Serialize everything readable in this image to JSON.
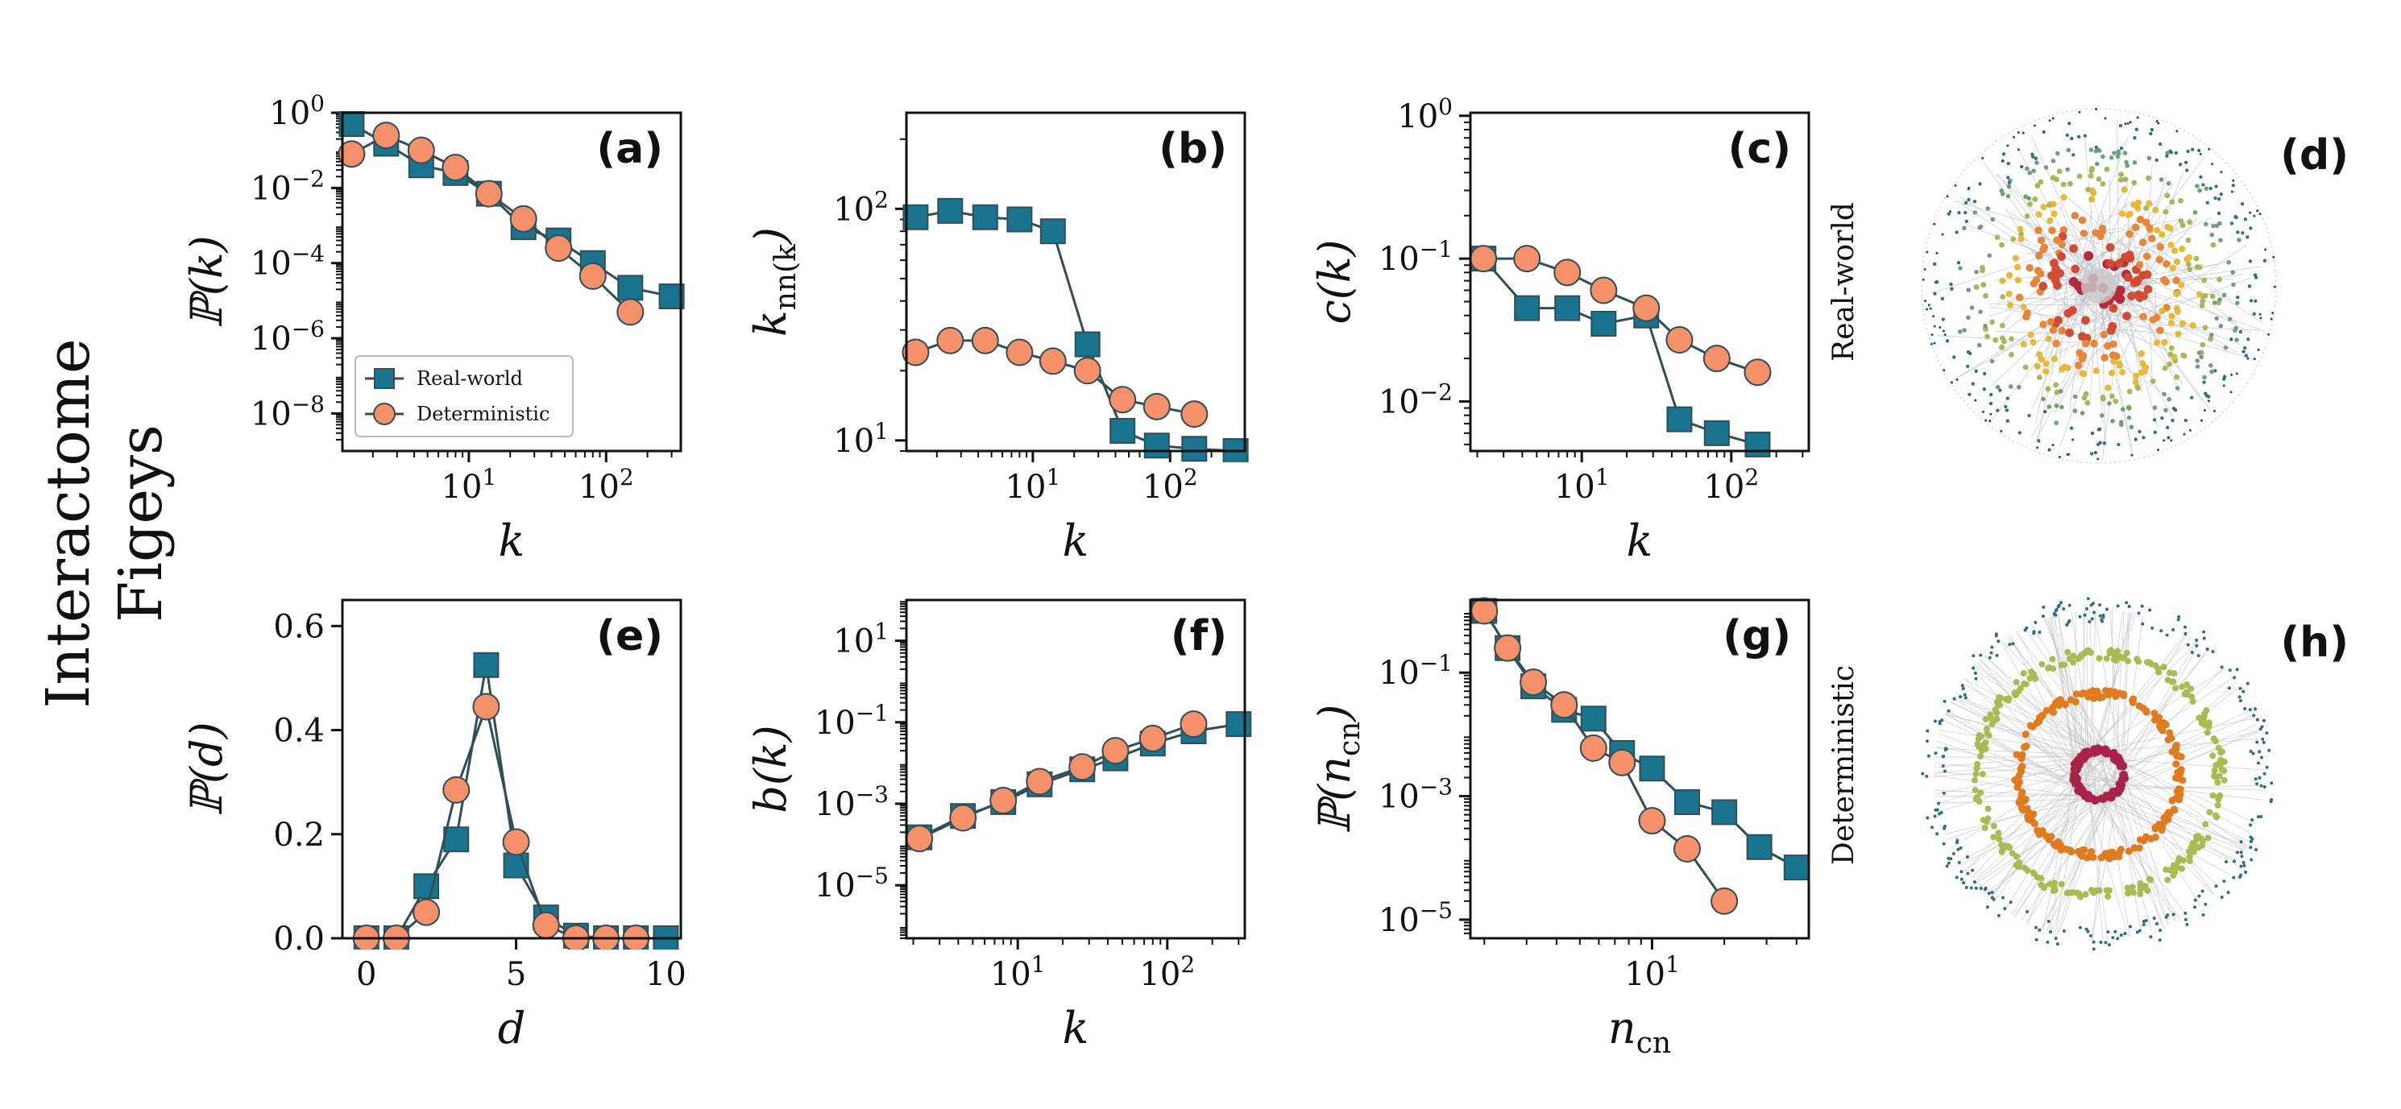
{
  "figure": {
    "row_label_line1": "Interactome",
    "row_label_line2": "Figeys",
    "side_label_top": "Real-world",
    "side_label_bottom": "Deterministic",
    "network_d_label": "(d)",
    "network_h_label": "(h)"
  },
  "colors": {
    "real": "#1a7490",
    "det": "#f4906a",
    "edge": "#2f4f55"
  },
  "chart_data": [
    {
      "id": "a",
      "label": "(a)",
      "type": "line",
      "xscale": "log",
      "yscale": "log",
      "xlim": [
        1.2,
        350
      ],
      "ylim": [
        1e-09,
        1
      ],
      "xticks": [
        10,
        100
      ],
      "xticklabels": [
        "10¹",
        "10²"
      ],
      "yticks": [
        1,
        0.01,
        0.0001,
        1e-06,
        1e-08
      ],
      "yticklabels": [
        "10⁰",
        "10⁻²",
        "10⁻⁴",
        "10⁻⁶",
        "10⁻⁸"
      ],
      "xlabel": "k",
      "ylabel": "ℙ(k)",
      "legend": {
        "position": "lower-left",
        "entries": [
          "Real-world",
          "Deterministic"
        ]
      },
      "series": [
        {
          "name": "Real-world",
          "marker": "square",
          "x": [
            1.4,
            2.5,
            4.5,
            8,
            14,
            25,
            45,
            80,
            150,
            300
          ],
          "y": [
            0.5,
            0.15,
            0.04,
            0.025,
            0.007,
            0.0009,
            0.0004,
            0.0001,
            2.2e-05,
            1.3e-05
          ]
        },
        {
          "name": "Deterministic",
          "marker": "circle",
          "x": [
            1.4,
            2.5,
            4.5,
            8,
            14,
            25,
            45,
            80,
            150
          ],
          "y": [
            0.08,
            0.25,
            0.1,
            0.035,
            0.007,
            0.0015,
            0.00025,
            4.5e-05,
            5e-06
          ]
        }
      ]
    },
    {
      "id": "b",
      "label": "(b)",
      "type": "line",
      "xscale": "log",
      "yscale": "log",
      "xlim": [
        1.2,
        350
      ],
      "ylim": [
        9,
        260
      ],
      "xticks": [
        10,
        100
      ],
      "xticklabels": [
        "10¹",
        "10²"
      ],
      "yticks": [
        10,
        100
      ],
      "yticklabels": [
        "10¹",
        "10²"
      ],
      "xlabel": "k",
      "ylabel": "k_nn(k)",
      "series": [
        {
          "name": "Real-world",
          "marker": "square",
          "x": [
            1.4,
            2.5,
            4.5,
            8,
            14,
            25,
            45,
            80,
            150,
            300
          ],
          "y": [
            92,
            98,
            92,
            90,
            80,
            26,
            11,
            9.5,
            9.2,
            9
          ]
        },
        {
          "name": "Deterministic",
          "marker": "circle",
          "x": [
            1.4,
            2.5,
            4.5,
            8,
            14,
            25,
            45,
            80,
            150
          ],
          "y": [
            24,
            27,
            27,
            24,
            22,
            20,
            15,
            14,
            13
          ]
        }
      ]
    },
    {
      "id": "c",
      "label": "(c)",
      "type": "line",
      "xscale": "log",
      "yscale": "log",
      "xlim": [
        1.8,
        330
      ],
      "ylim": [
        0.0045,
        1.05
      ],
      "xticks": [
        10,
        100
      ],
      "xticklabels": [
        "10¹",
        "10²"
      ],
      "yticks": [
        1,
        0.1,
        0.01
      ],
      "yticklabels": [
        "10⁰",
        "10⁻¹",
        "10⁻²"
      ],
      "xlabel": "k",
      "ylabel": "c(k)",
      "series": [
        {
          "name": "Real-world",
          "marker": "square",
          "x": [
            2.2,
            4.3,
            8,
            14,
            27,
            45,
            80,
            150
          ],
          "y": [
            0.1,
            0.045,
            0.045,
            0.035,
            0.04,
            0.0075,
            0.006,
            0.005
          ]
        },
        {
          "name": "Deterministic",
          "marker": "circle",
          "x": [
            2.2,
            4.3,
            8,
            14,
            27,
            45,
            80,
            150
          ],
          "y": [
            0.1,
            0.1,
            0.08,
            0.06,
            0.045,
            0.027,
            0.02,
            0.016
          ]
        }
      ]
    },
    {
      "id": "e",
      "label": "(e)",
      "type": "line",
      "xscale": "linear",
      "yscale": "linear",
      "xlim": [
        -0.8,
        10.5
      ],
      "ylim": [
        0,
        0.65
      ],
      "xticks": [
        0,
        5,
        10
      ],
      "xticklabels": [
        "0",
        "5",
        "10"
      ],
      "yticks": [
        0,
        0.2,
        0.4,
        0.6
      ],
      "yticklabels": [
        "0.0",
        "0.2",
        "0.4",
        "0.6"
      ],
      "xlabel": "d",
      "ylabel": "ℙ(d)",
      "series": [
        {
          "name": "Real-world",
          "marker": "square",
          "x": [
            0,
            1,
            2,
            3,
            4,
            5,
            6,
            7,
            8,
            9,
            10
          ],
          "y": [
            0,
            0,
            0.1,
            0.19,
            0.525,
            0.14,
            0.04,
            0.005,
            0,
            0,
            0
          ]
        },
        {
          "name": "Deterministic",
          "marker": "circle",
          "x": [
            0,
            1,
            2,
            3,
            4,
            5,
            6,
            7,
            8,
            9
          ],
          "y": [
            0,
            0,
            0.05,
            0.285,
            0.445,
            0.185,
            0.025,
            0,
            0,
            0
          ]
        }
      ]
    },
    {
      "id": "f",
      "label": "(f)",
      "type": "line",
      "xscale": "log",
      "yscale": "log",
      "xlim": [
        1.8,
        330
      ],
      "ylim": [
        5e-07,
        100
      ],
      "xticks": [
        10,
        100
      ],
      "xticklabels": [
        "10¹",
        "10²"
      ],
      "yticks": [
        10,
        0.1,
        0.001,
        1e-05
      ],
      "yticklabels": [
        "10¹",
        "10⁻¹",
        "10⁻³",
        "10⁻⁵"
      ],
      "xlabel": "k",
      "ylabel": "b(k)",
      "series": [
        {
          "name": "Real-world",
          "marker": "square",
          "x": [
            2.2,
            4.3,
            8,
            14,
            27,
            45,
            80,
            150,
            300
          ],
          "y": [
            0.00015,
            0.0005,
            0.0011,
            0.003,
            0.007,
            0.013,
            0.03,
            0.06,
            0.09
          ]
        },
        {
          "name": "Deterministic",
          "marker": "circle",
          "x": [
            2.2,
            4.3,
            8,
            14,
            27,
            45,
            80,
            150
          ],
          "y": [
            0.00014,
            0.00045,
            0.0012,
            0.0035,
            0.008,
            0.02,
            0.04,
            0.09
          ]
        }
      ]
    },
    {
      "id": "g",
      "label": "(g)",
      "type": "line",
      "xscale": "log",
      "yscale": "log",
      "xlim": [
        1.75,
        45
      ],
      "ylim": [
        5e-06,
        1.5
      ],
      "xticks": [
        10
      ],
      "xticklabels": [
        "10¹"
      ],
      "yticks": [
        0.1,
        0.001,
        1e-05
      ],
      "yticklabels": [
        "10⁻¹",
        "10⁻³",
        "10⁻⁵"
      ],
      "xlabel": "n_cn",
      "ylabel": "ℙ(n_cn)",
      "series": [
        {
          "name": "Real-world",
          "marker": "square",
          "x": [
            2,
            2.5,
            3.2,
            4.3,
            5.7,
            7.5,
            10,
            14,
            20,
            28,
            40
          ],
          "y": [
            1,
            0.25,
            0.06,
            0.025,
            0.018,
            0.005,
            0.0028,
            0.0008,
            0.00055,
            0.00015,
            7e-05
          ]
        },
        {
          "name": "Deterministic",
          "marker": "circle",
          "x": [
            2,
            2.5,
            3.2,
            4.3,
            5.7,
            7.5,
            10,
            14,
            20
          ],
          "y": [
            1,
            0.25,
            0.07,
            0.03,
            0.006,
            0.0035,
            0.0004,
            0.00014,
            2e-05
          ]
        }
      ]
    }
  ]
}
